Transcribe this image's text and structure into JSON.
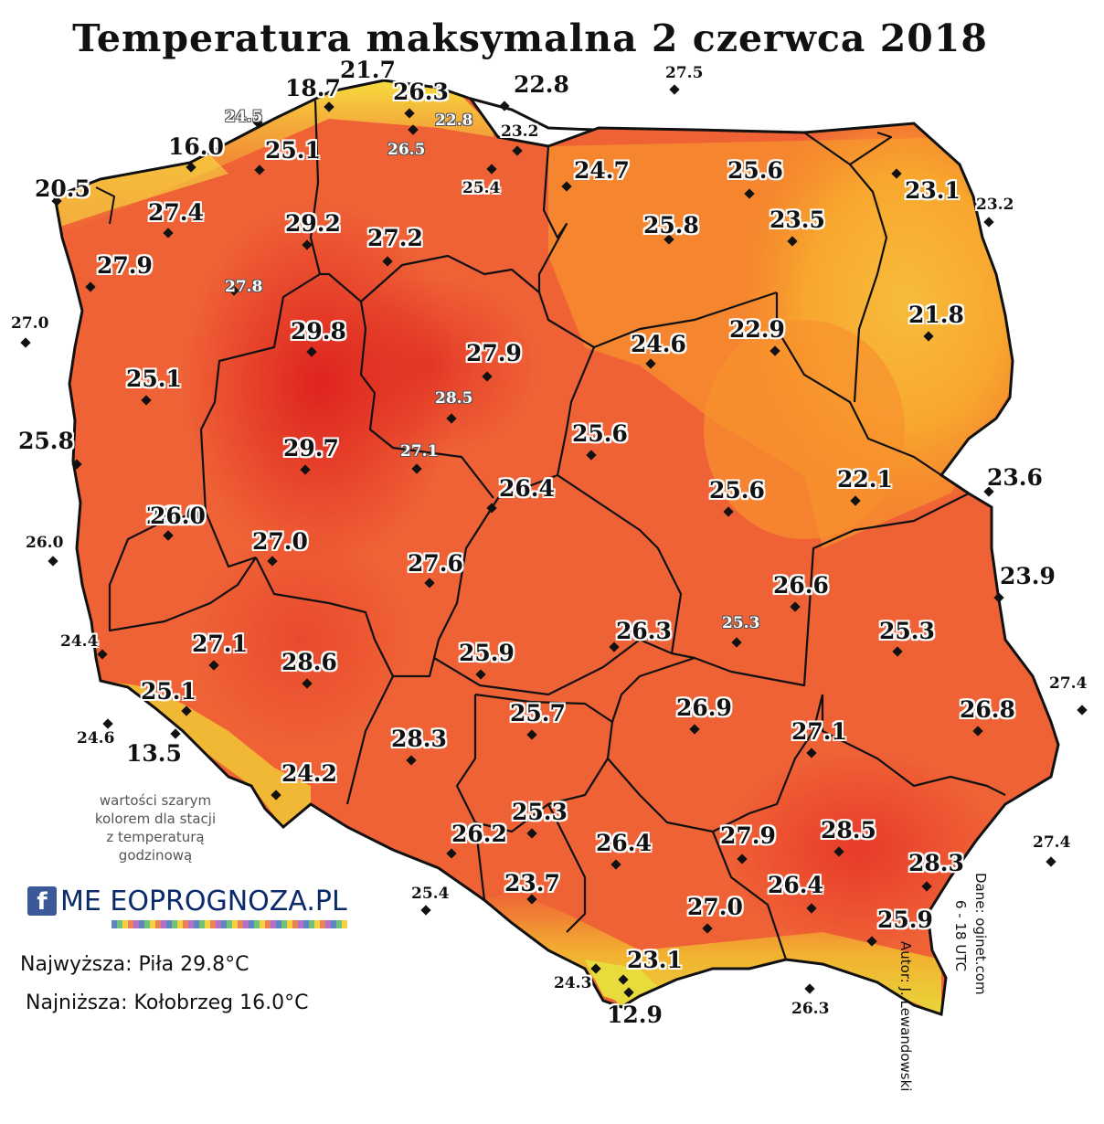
{
  "title": "Temperatura maksymalna 2 czerwca 2018",
  "note": [
    "wartości szarym",
    "kolorem dla stacji",
    "z temperaturą",
    "godzinową"
  ],
  "stats": {
    "max": "Najwyższa: Piła 29.8°C",
    "min": "Najniższa: Kołobrzeg 16.0°C"
  },
  "credits": {
    "author": "Autor: J. Lewandowski",
    "data": "Dane: oginet.com",
    "hours": "6 - 18 UTC"
  },
  "logo": {
    "text": "ME  EOPROGNOZA.PL",
    "fb": "f"
  },
  "colors": {
    "hot": "#e02420",
    "warm": "#f0582e",
    "mild": "#f57a3c",
    "cool": "#f8a030",
    "cooler": "#f6b83a"
  },
  "stations": [
    {
      "v": "21.7",
      "size": "big"
    },
    {
      "v": "18.7",
      "size": "big"
    },
    {
      "v": "26.3",
      "size": "big"
    },
    {
      "v": "22.8",
      "size": "big"
    },
    {
      "v": "27.5",
      "size": "small"
    },
    {
      "v": "24.5",
      "size": "grey"
    },
    {
      "v": "22.8",
      "size": "grey"
    },
    {
      "v": "23.2",
      "size": "small"
    },
    {
      "v": "16.0",
      "size": "big"
    },
    {
      "v": "25.1",
      "size": "big"
    },
    {
      "v": "26.5",
      "size": "grey"
    },
    {
      "v": "24.7",
      "size": "big"
    },
    {
      "v": "25.6",
      "size": "big"
    },
    {
      "v": "20.5",
      "size": "big"
    },
    {
      "v": "25.4",
      "size": "small"
    },
    {
      "v": "23.1",
      "size": "big"
    },
    {
      "v": "23.2",
      "size": "small"
    },
    {
      "v": "27.4",
      "size": "big"
    },
    {
      "v": "29.2",
      "size": "big"
    },
    {
      "v": "25.8",
      "size": "big"
    },
    {
      "v": "23.5",
      "size": "big"
    },
    {
      "v": "27.2",
      "size": "big"
    },
    {
      "v": "27.9",
      "size": "big"
    },
    {
      "v": "27.8",
      "size": "grey"
    },
    {
      "v": "21.8",
      "size": "big"
    },
    {
      "v": "27.0",
      "size": "small"
    },
    {
      "v": "29.8",
      "size": "big"
    },
    {
      "v": "24.6",
      "size": "big"
    },
    {
      "v": "22.9",
      "size": "big"
    },
    {
      "v": "27.9",
      "size": "big"
    },
    {
      "v": "25.1",
      "size": "big"
    },
    {
      "v": "28.5",
      "size": "grey"
    },
    {
      "v": "25.6",
      "size": "big"
    },
    {
      "v": "25.8",
      "size": "big"
    },
    {
      "v": "29.7",
      "size": "big"
    },
    {
      "v": "27.1",
      "size": "grey"
    },
    {
      "v": "26.4",
      "size": "big"
    },
    {
      "v": "25.6",
      "size": "big"
    },
    {
      "v": "22.1",
      "size": "big"
    },
    {
      "v": "23.6",
      "size": "big"
    },
    {
      "v": "26.0",
      "size": "big"
    },
    {
      "v": "27.0",
      "size": "big"
    },
    {
      "v": "26.0",
      "size": "small"
    },
    {
      "v": "26.0",
      "size": "big"
    },
    {
      "v": "27.6",
      "size": "big"
    },
    {
      "v": "23.9",
      "size": "big"
    },
    {
      "v": "26.6",
      "size": "big"
    },
    {
      "v": "24.4",
      "size": "small"
    },
    {
      "v": "27.1",
      "size": "big"
    },
    {
      "v": "26.3",
      "size": "big"
    },
    {
      "v": "25.3",
      "size": "grey"
    },
    {
      "v": "25.3",
      "size": "big"
    },
    {
      "v": "28.6",
      "size": "big"
    },
    {
      "v": "25.9",
      "size": "big"
    },
    {
      "v": "27.4",
      "size": "small"
    },
    {
      "v": "25.1",
      "size": "big"
    },
    {
      "v": "25.7",
      "size": "big"
    },
    {
      "v": "26.9",
      "size": "big"
    },
    {
      "v": "26.8",
      "size": "big"
    },
    {
      "v": "24.6",
      "size": "small"
    },
    {
      "v": "13.5",
      "size": "big"
    },
    {
      "v": "28.3",
      "size": "big"
    },
    {
      "v": "27.1",
      "size": "big"
    },
    {
      "v": "24.2",
      "size": "big"
    },
    {
      "v": "25.3",
      "size": "big"
    },
    {
      "v": "28.5",
      "size": "big"
    },
    {
      "v": "26.2",
      "size": "big"
    },
    {
      "v": "26.4",
      "size": "big"
    },
    {
      "v": "27.9",
      "size": "big"
    },
    {
      "v": "27.4",
      "size": "small"
    },
    {
      "v": "28.3",
      "size": "big"
    },
    {
      "v": "23.7",
      "size": "big"
    },
    {
      "v": "26.4",
      "size": "big"
    },
    {
      "v": "25.4",
      "size": "small"
    },
    {
      "v": "27.0",
      "size": "big"
    },
    {
      "v": "25.9",
      "size": "big"
    },
    {
      "v": "23.1",
      "size": "big"
    },
    {
      "v": "24.3",
      "size": "small"
    },
    {
      "v": "12.9",
      "size": "big"
    },
    {
      "v": "26.3",
      "size": "small"
    }
  ]
}
